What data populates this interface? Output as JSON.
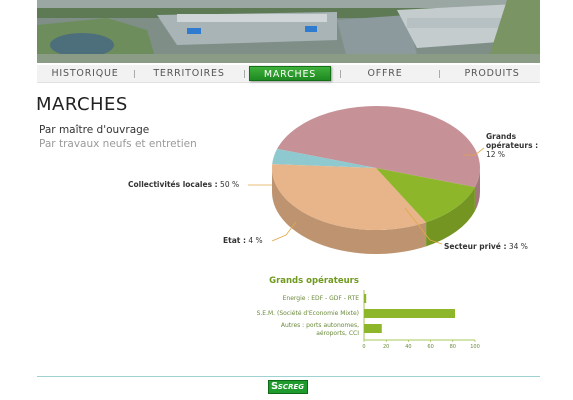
{
  "nav": {
    "items": [
      {
        "label": "HISTORIQUE"
      },
      {
        "label": "TERRITOIRES"
      },
      {
        "label": "MARCHES",
        "active": true
      },
      {
        "label": "OFFRE"
      },
      {
        "label": "PRODUITS"
      }
    ]
  },
  "page": {
    "title": "MARCHES",
    "subtitle_primary": "Par maître d'ouvrage",
    "subtitle_secondary": "Par travaux neufs et entretien"
  },
  "pie": {
    "labels": {
      "collectivites": "Collectivités locales :",
      "collectivites_value": "50 %",
      "etat": "Etat :",
      "etat_value": "4 %",
      "grands": "Grands opérateurs :",
      "grands_value": "12 %",
      "prive": "Secteur privé :",
      "prive_value": "34 %"
    }
  },
  "colors": {
    "collectivites": "#c69197",
    "etat": "#8fc9d0",
    "prive": "#e8b489",
    "grands": "#8db62a",
    "accent_green": "#2a9a2f",
    "chart_title": "#6f9a1e"
  },
  "footer": {
    "logo_text": "SCREG",
    "logo_mark": "S"
  },
  "chart_data": [
    {
      "type": "pie",
      "title": "",
      "categories": [
        "Collectivités locales",
        "Etat",
        "Secteur privé",
        "Grands opérateurs"
      ],
      "values": [
        50,
        4,
        34,
        12
      ],
      "unit": "%"
    },
    {
      "type": "bar",
      "orientation": "horizontal",
      "title": "Grands opérateurs",
      "categories": [
        "Energie : EDF - GDF - RTE",
        "S.E.M. (Société d'Economie Mixte)",
        "Autres : ports autonomes, aéroports, CCI"
      ],
      "values": [
        2,
        82,
        16
      ],
      "xlim": [
        0,
        100
      ],
      "xticks": [
        "0",
        "20",
        "40",
        "60",
        "80",
        "100"
      ],
      "grid": false
    }
  ]
}
